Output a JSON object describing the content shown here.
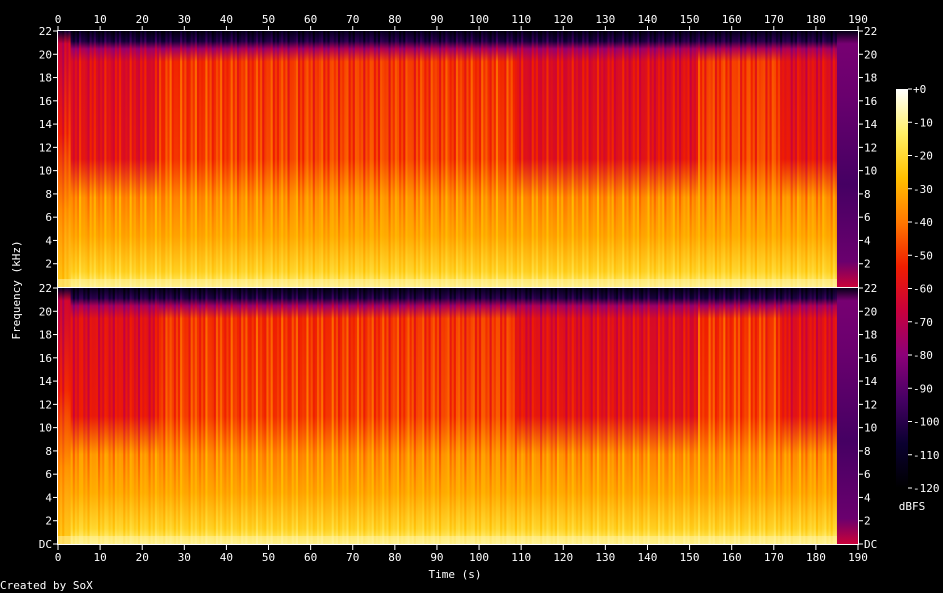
{
  "chart_data": {
    "type": "heatmap",
    "xlabel": "Time (s)",
    "ylabel": "Frequency (kHz)",
    "xlim": [
      0,
      190
    ],
    "x_ticks": [
      0,
      10,
      20,
      30,
      40,
      50,
      60,
      70,
      80,
      90,
      100,
      110,
      120,
      130,
      140,
      150,
      160,
      170,
      180,
      190
    ],
    "ylim_khz": [
      0,
      22
    ],
    "y_ticks": [
      {
        "value": 0,
        "label": "DC"
      },
      {
        "value": 2,
        "label": "2"
      },
      {
        "value": 4,
        "label": "4"
      },
      {
        "value": 6,
        "label": "6"
      },
      {
        "value": 8,
        "label": "8"
      },
      {
        "value": 10,
        "label": "10"
      },
      {
        "value": 12,
        "label": "12"
      },
      {
        "value": 14,
        "label": "14"
      },
      {
        "value": 16,
        "label": "16"
      },
      {
        "value": 18,
        "label": "18"
      },
      {
        "value": 20,
        "label": "20"
      },
      {
        "value": 22,
        "label": "22"
      }
    ],
    "channels": 2,
    "colorbar": {
      "label": "dBFS",
      "range_db": [
        -120,
        0
      ],
      "ticks": [
        "+0",
        "-10",
        "-20",
        "-30",
        "-40",
        "-50",
        "-60",
        "-70",
        "-80",
        "-90",
        "-100",
        "-110",
        "-120"
      ],
      "colors": [
        "#ffffff",
        "#fff066",
        "#ffc000",
        "#ff7800",
        "#f01e00",
        "#c8003c",
        "#8c0078",
        "#460064",
        "#0a0030",
        "#000000"
      ]
    },
    "content_end_s": 185,
    "quiet_sections_s": [
      [
        3,
        24
      ],
      [
        109,
        152
      ],
      [
        172,
        185
      ]
    ],
    "loud_sections_s": [
      [
        24,
        109
      ],
      [
        152,
        172
      ]
    ],
    "footer": "Created by SoX"
  }
}
